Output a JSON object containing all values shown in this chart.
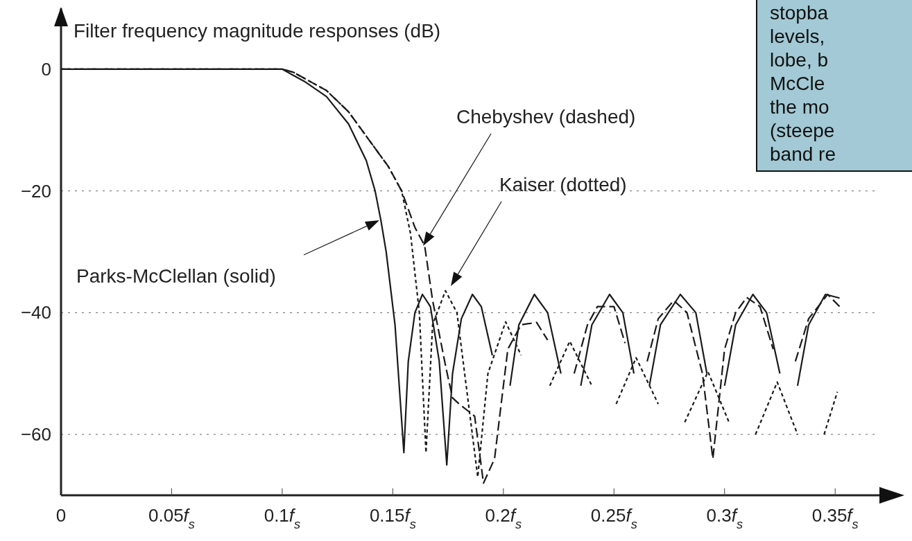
{
  "chart_data": {
    "type": "line",
    "ylabel": "Filter frequency magnitude responses (dB)",
    "xlim": [
      0,
      0.37
    ],
    "ylim": [
      -70,
      10
    ],
    "xticks": [
      0,
      {
        "value": 0.05,
        "label": "0.05f$_{s}$"
      },
      {
        "value": 0.1,
        "label": "0.1f$_{s}$"
      },
      {
        "value": 0.15,
        "label": "0.15f$_{s}$"
      },
      {
        "value": 0.2,
        "label": "0.2f$_{s}$"
      },
      {
        "value": 0.25,
        "label": "0.25f$_{s}$"
      },
      {
        "value": 0.3,
        "label": "0.3f$_{s}$"
      },
      {
        "value": 0.35,
        "label": "0.35f$_{s}$"
      }
    ],
    "yticks": [
      0,
      {
        "value": -20,
        "label": "−20"
      },
      {
        "value": -40,
        "label": "−40"
      },
      {
        "value": -60,
        "label": "−60"
      }
    ],
    "grid": "y",
    "marker": "none",
    "series": [
      {
        "color": "#1a1a1a",
        "line_style": "solid",
        "x": [
          0,
          0.05,
          0.1,
          0.105,
          0.11,
          0.12,
          0.13,
          0.138,
          0.142,
          0.1447,
          0.147,
          0.151,
          0.155,
          0.157,
          0.16,
          0.1634,
          0.167,
          0.171,
          0.1744,
          0.177,
          0.181,
          0.186,
          0.19,
          0.195,
          0.2003,
          0.203,
          0.207,
          0.214,
          0.22,
          0.226,
          0.2316,
          0.235,
          0.24,
          0.248,
          0.254,
          0.259,
          0.2628,
          0.266,
          0.271,
          0.28,
          0.287,
          0.292,
          0.2966,
          0.3,
          0.305,
          0.3128,
          0.319,
          0.325,
          0.3294,
          0.333,
          0.338,
          0.3456,
          0.352
        ],
        "values": [
          0,
          0,
          0,
          -1,
          -2,
          -4.5,
          -9,
          -15,
          -20,
          -25,
          -30,
          -42,
          -63,
          -48,
          -40,
          -37,
          -39,
          -48,
          -65,
          -50,
          -41,
          -37,
          -39,
          -47,
          null,
          -52,
          -42,
          -37,
          -40,
          -50,
          null,
          -52,
          -42,
          -37,
          -40,
          -50,
          null,
          -52,
          -42,
          -37,
          -40,
          -50,
          null,
          -52,
          -42,
          -37,
          -40,
          -50,
          null,
          -52,
          -42,
          -37,
          -37.6
        ]
      },
      {
        "color": "#1a1a1a",
        "line_style": "dashed",
        "x": [
          0,
          0.05,
          0.1,
          0.105,
          0.11,
          0.12,
          0.13,
          0.14,
          0.148,
          0.154,
          0.16,
          0.1644,
          0.168,
          0.174,
          0.177,
          0.18,
          0.187,
          0.191,
          0.196,
          0.202,
          0.208,
          0.215,
          0.22,
          0.227,
          0.232,
          0.238,
          0.2425,
          0.25,
          0.255,
          0.26,
          0.265,
          0.27,
          0.277,
          0.283,
          0.29,
          0.2947,
          0.3,
          0.305,
          0.31,
          0.316,
          0.322,
          0.327,
          0.332,
          0.338,
          0.3466,
          0.352
        ],
        "values": [
          0,
          0,
          0,
          -0.5,
          -1.5,
          -3.5,
          -7,
          -12,
          -16,
          -20,
          -26,
          -29,
          -38,
          -49,
          -54,
          -55,
          -57,
          -68,
          -64,
          -46,
          -42,
          -41.6,
          -44.5,
          null,
          -50,
          -42,
          -39,
          -39,
          -45,
          null,
          -48,
          -41,
          -38,
          -40,
          -50,
          -64,
          -46,
          -40,
          -37.5,
          -39,
          -46,
          null,
          -48,
          -41,
          -37,
          -39
        ]
      },
      {
        "color": "#1a1a1a",
        "line_style": "dotted",
        "x": [
          0,
          0.05,
          0.1,
          0.105,
          0.11,
          0.12,
          0.13,
          0.14,
          0.148,
          0.154,
          0.158,
          0.162,
          0.165,
          0.168,
          0.1738,
          0.179,
          0.1884,
          0.193,
          0.201,
          0.208,
          0.2169,
          0.221,
          0.23,
          0.24,
          0.2466,
          0.251,
          0.26,
          0.27,
          0.2775,
          0.282,
          0.2925,
          0.302,
          0.309,
          0.314,
          0.3238,
          0.333,
          0.34,
          0.345,
          0.351
        ],
        "values": [
          0,
          0,
          0,
          -0.5,
          -1.5,
          -3.5,
          -7,
          -12,
          -16,
          -20,
          -27,
          -40,
          -63,
          -42,
          -36.4,
          -40,
          -67,
          -50,
          -41.5,
          -47,
          null,
          -52,
          -44.7,
          -52,
          null,
          -55,
          -47.4,
          -55,
          null,
          -58,
          -49.7,
          -58,
          null,
          -60,
          -51.4,
          -60,
          null,
          -60,
          -53
        ]
      }
    ],
    "annotations": [
      "Chebyshev (dashed)",
      "Kaiser (dotted)",
      "Parks-McClellan (solid)",
      "stopba",
      "levels,",
      "lobe, b",
      "McCle",
      "the mo",
      "(steepe",
      "band re"
    ]
  }
}
